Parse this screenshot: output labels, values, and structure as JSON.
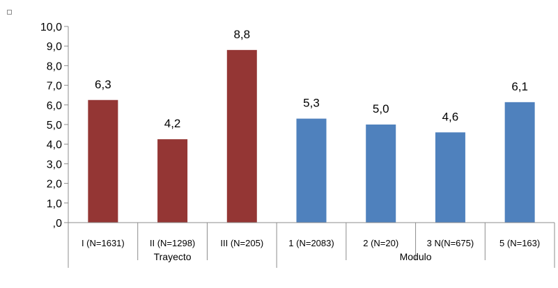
{
  "chart_data": {
    "type": "bar",
    "ylim": [
      0,
      10
    ],
    "y_ticks": [
      ",0",
      "1,0",
      "2,0",
      "3,0",
      "4,0",
      "5,0",
      "6,0",
      "7,0",
      "8,0",
      "9,0",
      "10,0"
    ],
    "grid": false,
    "categories": [
      "I (N=1631)",
      "II (N=1298)",
      "III (N=205)",
      "1 (N=2083)",
      "2 (N=20)",
      "3 N(N=675)",
      "5 (N=163)"
    ],
    "values": [
      6.25,
      4.25,
      8.8,
      5.3,
      5.0,
      4.6,
      6.14
    ],
    "data_labels": [
      "6,3",
      "4,2",
      "8,8",
      "5,3",
      "5,0",
      "4,6",
      "6,1"
    ],
    "bar_colors": [
      "#943634",
      "#943634",
      "#943634",
      "#4f81bd",
      "#4f81bd",
      "#4f81bd",
      "#4f81bd"
    ],
    "groups": [
      {
        "label": "Trayecto",
        "count": 3
      },
      {
        "label": "Modulo",
        "count": 4
      }
    ]
  }
}
